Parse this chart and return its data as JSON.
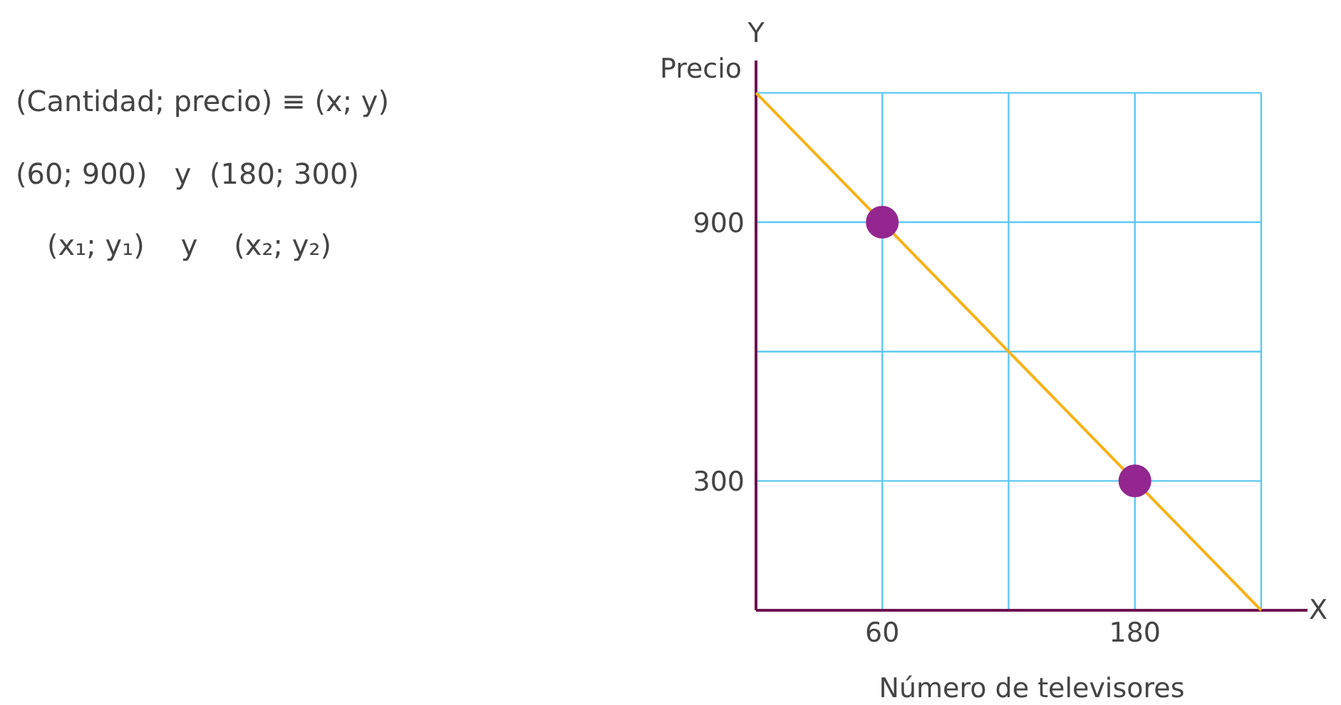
{
  "chart_data": {
    "type": "scatter",
    "xlabel": "Número de televisores",
    "ylabel": "Precio",
    "grid": true,
    "xlim": [
      0,
      262
    ],
    "ylim": [
      0,
      1275
    ],
    "xticks": [
      60,
      {
        "value": 120,
        "label": null
      },
      180,
      {
        "value": 240,
        "label": null
      }
    ],
    "yticks": [
      300,
      {
        "value": 600,
        "label": null
      },
      900,
      {
        "value": 1200,
        "label": null
      }
    ],
    "series": [
      {
        "type": "line",
        "x": [
          0,
          240
        ],
        "values": [
          1200,
          0
        ],
        "color": "#f6b21a"
      },
      {
        "x": [
          60,
          180
        ],
        "values": [
          900,
          300
        ],
        "color": "#93278f",
        "marker": "circle"
      }
    ],
    "annotations": [
      "(Cantidad; precio) ≡ (x; y)",
      "(60; 900)   y  (180; 300)",
      "(x₁; y₁)    y    (x₂; y₂)",
      "Y",
      "X"
    ]
  }
}
